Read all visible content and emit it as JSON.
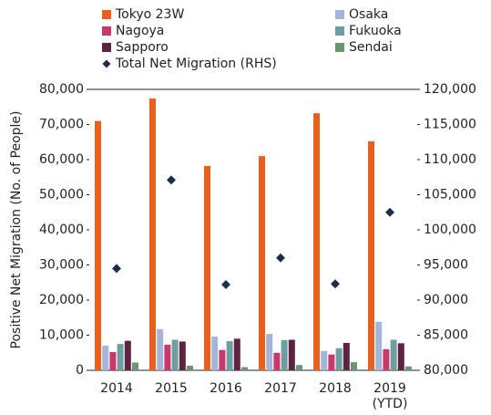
{
  "chart_data": {
    "type": "bar",
    "y_label": "Positive Net Migration (No. of People)",
    "categories": [
      "2014",
      "2015",
      "2016",
      "2017",
      "2018",
      "2019\n(YTD)"
    ],
    "series": [
      {
        "name": "Tokyo 23W",
        "color": "#e8601c",
        "values": [
          71000,
          77400,
          58200,
          61000,
          73200,
          65200
        ]
      },
      {
        "name": "Osaka",
        "color": "#a3b6da",
        "values": [
          7000,
          11700,
          9600,
          10400,
          5500,
          13800
        ]
      },
      {
        "name": "Nagoya",
        "color": "#c9386b",
        "values": [
          5200,
          7300,
          5800,
          5000,
          4500,
          6000
        ]
      },
      {
        "name": "Fukuoka",
        "color": "#6f9ea0",
        "values": [
          7500,
          8700,
          8300,
          8600,
          6300,
          8700
        ]
      },
      {
        "name": "Sapporo",
        "color": "#5e2340",
        "values": [
          8400,
          8200,
          9000,
          8700,
          7800,
          7700
        ]
      },
      {
        "name": "Sendai",
        "color": "#6b9470",
        "values": [
          2200,
          1300,
          900,
          1500,
          2300,
          1100
        ]
      },
      {
        "name": "Total Net Migration (RHS)",
        "color": "#1f2d4a",
        "axis": "y2",
        "marker": "diamond",
        "values": [
          94500,
          107100,
          92200,
          96000,
          92300,
          102500
        ]
      }
    ],
    "ylim": [
      0,
      80000
    ],
    "yticks": [
      0,
      {
        "value": 10000,
        "label": "10,000"
      },
      {
        "value": 20000,
        "label": "20,000"
      },
      {
        "value": 30000,
        "label": "30,000"
      },
      {
        "value": 40000,
        "label": "40,000"
      },
      {
        "value": 50000,
        "label": "50,000"
      },
      {
        "value": 60000,
        "label": "60,000"
      },
      {
        "value": 70000,
        "label": "70,000"
      },
      {
        "value": 80000,
        "label": "80,000"
      }
    ],
    "y2lim": [
      80000,
      120000
    ],
    "y2ticks": [
      {
        "value": 80000,
        "label": "80,000"
      },
      {
        "value": 85000,
        "label": "85,000"
      },
      {
        "value": 90000,
        "label": "90,000"
      },
      {
        "value": 95000,
        "label": "95,000"
      },
      {
        "value": 100000,
        "label": "100,000"
      },
      {
        "value": 105000,
        "label": "105,000"
      },
      {
        "value": 110000,
        "label": "110,000"
      },
      {
        "value": 115000,
        "label": "115,000"
      },
      {
        "value": 120000,
        "label": "120,000"
      }
    ],
    "grid": false
  }
}
